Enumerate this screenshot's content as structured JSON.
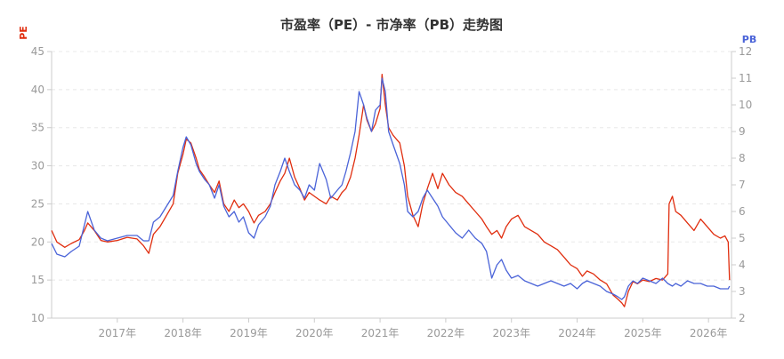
{
  "chart_data": {
    "type": "line",
    "title": "市盈率（PE）- 市净率（PB）走势图",
    "y_left_label": "PE",
    "y_right_label": "PB",
    "ylim_left": [
      10,
      45
    ],
    "ylim_right": [
      2,
      12
    ],
    "yticks_left": [
      10,
      15,
      20,
      25,
      30,
      35,
      40,
      45
    ],
    "yticks_right": [
      2,
      3,
      4,
      5,
      6,
      7,
      8,
      9,
      10,
      11,
      12
    ],
    "xlim": [
      2016.0,
      2026.35
    ],
    "xticks": [
      {
        "value": 2017,
        "label": "2017年"
      },
      {
        "value": 2018,
        "label": "2018年"
      },
      {
        "value": 2019,
        "label": "2019年"
      },
      {
        "value": 2020,
        "label": "2020年"
      },
      {
        "value": 2021,
        "label": "2021年"
      },
      {
        "value": 2022,
        "label": "2022年"
      },
      {
        "value": 2023,
        "label": "2023年"
      },
      {
        "value": 2024,
        "label": "2024年"
      },
      {
        "value": 2025,
        "label": "2025年"
      },
      {
        "value": 2026,
        "label": "2026年"
      }
    ],
    "grid": true,
    "series": [
      {
        "axis": "left",
        "color": "#e02d0e",
        "x": [
          2016.0,
          2016.08,
          2016.2,
          2016.3,
          2016.42,
          2016.5,
          2016.55,
          2016.65,
          2016.75,
          2016.85,
          2017.0,
          2017.15,
          2017.3,
          2017.4,
          2017.48,
          2017.55,
          2017.65,
          2017.75,
          2017.85,
          2017.92,
          2018.0,
          2018.05,
          2018.12,
          2018.2,
          2018.25,
          2018.33,
          2018.4,
          2018.48,
          2018.55,
          2018.62,
          2018.7,
          2018.78,
          2018.85,
          2018.92,
          2019.0,
          2019.08,
          2019.15,
          2019.25,
          2019.33,
          2019.4,
          2019.48,
          2019.55,
          2019.62,
          2019.7,
          2019.78,
          2019.85,
          2019.92,
          2020.0,
          2020.08,
          2020.18,
          2020.25,
          2020.35,
          2020.42,
          2020.48,
          2020.55,
          2020.62,
          2020.68,
          2020.75,
          2020.8,
          2020.87,
          2020.93,
          2021.0,
          2021.03,
          2021.08,
          2021.13,
          2021.2,
          2021.3,
          2021.37,
          2021.42,
          2021.5,
          2021.58,
          2021.65,
          2021.72,
          2021.8,
          2021.88,
          2021.95,
          2022.05,
          2022.15,
          2022.25,
          2022.35,
          2022.45,
          2022.55,
          2022.62,
          2022.7,
          2022.78,
          2022.85,
          2022.92,
          2023.0,
          2023.1,
          2023.2,
          2023.3,
          2023.4,
          2023.5,
          2023.6,
          2023.7,
          2023.8,
          2023.9,
          2024.0,
          2024.08,
          2024.15,
          2024.25,
          2024.35,
          2024.45,
          2024.55,
          2024.62,
          2024.68,
          2024.72,
          2024.78,
          2024.85,
          2024.92,
          2025.0,
          2025.1,
          2025.2,
          2025.3,
          2025.38,
          2025.4,
          2025.45,
          2025.5,
          2025.58,
          2025.68,
          2025.78,
          2025.88,
          2025.98,
          2026.08,
          2026.18,
          2026.25,
          2026.3,
          2026.32
        ],
        "values": [
          21.5,
          20.0,
          19.3,
          19.8,
          20.3,
          21.5,
          22.5,
          21.5,
          20.2,
          20.0,
          20.2,
          20.6,
          20.4,
          19.5,
          18.5,
          21.0,
          22.0,
          23.5,
          25.0,
          29.0,
          31.5,
          33.5,
          33.0,
          31.0,
          29.5,
          28.5,
          27.5,
          26.5,
          28.0,
          25.0,
          24.0,
          25.5,
          24.5,
          25.0,
          24.0,
          22.5,
          23.5,
          24.0,
          25.0,
          26.5,
          28.0,
          29.0,
          31.0,
          28.5,
          27.0,
          25.5,
          26.5,
          26.0,
          25.5,
          25.0,
          26.0,
          25.5,
          26.5,
          27.0,
          28.5,
          31.0,
          34.0,
          38.0,
          36.0,
          34.5,
          35.5,
          37.5,
          42.0,
          38.0,
          35.0,
          34.0,
          33.0,
          30.0,
          26.0,
          23.5,
          22.0,
          25.0,
          27.0,
          29.0,
          27.0,
          29.0,
          27.5,
          26.5,
          26.0,
          25.0,
          24.0,
          23.0,
          22.0,
          21.0,
          21.5,
          20.5,
          22.0,
          23.0,
          23.5,
          22.0,
          21.5,
          21.0,
          20.0,
          19.5,
          19.0,
          18.0,
          17.0,
          16.5,
          15.5,
          16.2,
          15.8,
          15.0,
          14.5,
          13.0,
          12.5,
          12.0,
          11.5,
          13.5,
          14.8,
          14.5,
          15.0,
          14.8,
          15.2,
          15.0,
          15.8,
          25.0,
          26.0,
          24.0,
          23.5,
          22.5,
          21.5,
          23.0,
          22.0,
          21.0,
          20.5,
          20.8,
          20.0,
          15.0
        ]
      },
      {
        "axis": "right",
        "color": "#4a63d8",
        "x": [
          2016.0,
          2016.08,
          2016.2,
          2016.3,
          2016.42,
          2016.5,
          2016.55,
          2016.65,
          2016.75,
          2016.85,
          2017.0,
          2017.15,
          2017.3,
          2017.4,
          2017.48,
          2017.55,
          2017.65,
          2017.75,
          2017.85,
          2017.92,
          2018.0,
          2018.05,
          2018.12,
          2018.2,
          2018.25,
          2018.33,
          2018.4,
          2018.48,
          2018.55,
          2018.62,
          2018.7,
          2018.78,
          2018.85,
          2018.92,
          2019.0,
          2019.08,
          2019.15,
          2019.25,
          2019.33,
          2019.4,
          2019.48,
          2019.55,
          2019.62,
          2019.7,
          2019.78,
          2019.85,
          2019.92,
          2020.0,
          2020.08,
          2020.18,
          2020.25,
          2020.35,
          2020.42,
          2020.48,
          2020.55,
          2020.62,
          2020.68,
          2020.75,
          2020.8,
          2020.87,
          2020.93,
          2021.0,
          2021.03,
          2021.08,
          2021.13,
          2021.2,
          2021.3,
          2021.37,
          2021.42,
          2021.5,
          2021.58,
          2021.65,
          2021.72,
          2021.8,
          2021.88,
          2021.95,
          2022.05,
          2022.15,
          2022.25,
          2022.35,
          2022.45,
          2022.55,
          2022.62,
          2022.7,
          2022.78,
          2022.85,
          2022.92,
          2023.0,
          2023.1,
          2023.2,
          2023.3,
          2023.4,
          2023.5,
          2023.6,
          2023.7,
          2023.8,
          2023.9,
          2024.0,
          2024.08,
          2024.15,
          2024.25,
          2024.35,
          2024.45,
          2024.55,
          2024.62,
          2024.68,
          2024.72,
          2024.78,
          2024.85,
          2024.92,
          2025.0,
          2025.1,
          2025.2,
          2025.3,
          2025.38,
          2025.45,
          2025.5,
          2025.58,
          2025.68,
          2025.78,
          2025.88,
          2025.98,
          2026.08,
          2026.18,
          2026.25,
          2026.3,
          2026.32
        ],
        "values": [
          4.8,
          4.4,
          4.3,
          4.5,
          4.7,
          5.5,
          6.0,
          5.3,
          5.0,
          4.9,
          5.0,
          5.1,
          5.1,
          4.9,
          4.9,
          5.6,
          5.8,
          6.2,
          6.6,
          7.5,
          8.4,
          8.8,
          8.5,
          7.8,
          7.5,
          7.2,
          7.0,
          6.5,
          7.0,
          6.2,
          5.8,
          6.0,
          5.6,
          5.8,
          5.2,
          5.0,
          5.5,
          5.8,
          6.2,
          7.0,
          7.5,
          8.0,
          7.5,
          7.0,
          6.8,
          6.5,
          7.0,
          6.8,
          7.8,
          7.2,
          6.5,
          6.8,
          7.0,
          7.5,
          8.2,
          9.0,
          10.5,
          10.0,
          9.5,
          9.0,
          9.8,
          10.0,
          11.0,
          10.5,
          9.0,
          8.5,
          7.8,
          7.0,
          6.0,
          5.8,
          6.0,
          6.5,
          6.8,
          6.5,
          6.2,
          5.8,
          5.5,
          5.2,
          5.0,
          5.3,
          5.0,
          4.8,
          4.5,
          3.5,
          4.0,
          4.2,
          3.8,
          3.5,
          3.6,
          3.4,
          3.3,
          3.2,
          3.3,
          3.4,
          3.3,
          3.2,
          3.3,
          3.1,
          3.3,
          3.4,
          3.3,
          3.2,
          3.0,
          2.9,
          2.8,
          2.7,
          2.8,
          3.2,
          3.4,
          3.3,
          3.5,
          3.4,
          3.3,
          3.5,
          3.3,
          3.2,
          3.3,
          3.2,
          3.4,
          3.3,
          3.3,
          3.2,
          3.2,
          3.1,
          3.1,
          3.1,
          3.2
        ]
      }
    ]
  }
}
